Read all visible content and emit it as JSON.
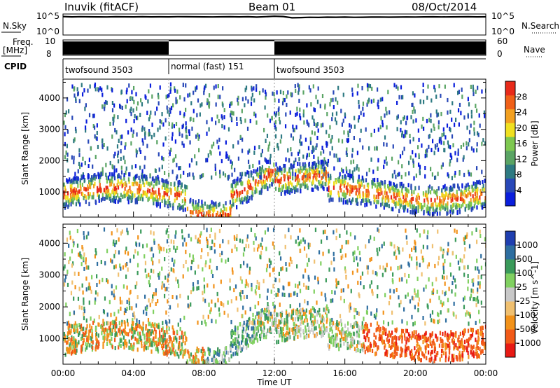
{
  "header": {
    "station": "Inuvik (fitACF)",
    "beam": "Beam 01",
    "date": "08/Oct/2014"
  },
  "colors": {
    "scatter_deep_blue": "#1f3fb0",
    "scatter_green": "#4a9a5a",
    "scatter_red": "#e82a1a",
    "scatter_orange": "#f2921a",
    "scatter_grey": "#c0c0c0"
  },
  "chart_data": [
    {
      "type": "line",
      "name": "noise-panel",
      "left_label": {
        "line1": "N.Sky",
        "top_tick": "10^5",
        "bottom_tick": "10^0"
      },
      "right_label": {
        "line1": "N.Search",
        "top_tick": "10^5",
        "bottom_tick": "10^0"
      },
      "scale": "log",
      "ylim": [
        1,
        100000
      ],
      "xlim_hours": [
        0,
        24
      ],
      "series": [
        {
          "x_hours": [
            0,
            0.5,
            1,
            1.5,
            2,
            2.5,
            3,
            3.5,
            4,
            4.5,
            5,
            5.5,
            6,
            6.5,
            7,
            7.5,
            8,
            8.5,
            9,
            9.5,
            10,
            10.5,
            11,
            11.5,
            12,
            12.5,
            13,
            13.5,
            14,
            14.5,
            15,
            15.5,
            16,
            16.5,
            17,
            17.5,
            18,
            18.5,
            19,
            19.5,
            20,
            20.5,
            21,
            21.5,
            22,
            22.5,
            23,
            23.5,
            24
          ],
          "y": [
            50000,
            40000,
            45000,
            42000,
            40000,
            38000,
            43000,
            41000,
            40000,
            44000,
            39000,
            42000,
            40000,
            45000,
            43000,
            41000,
            40000,
            38000,
            42000,
            44000,
            40000,
            43000,
            35000,
            45000,
            60000,
            50000,
            22000,
            25000,
            30000,
            28000,
            33000,
            31000,
            35000,
            30000,
            32000,
            34000,
            36000,
            33000,
            35000,
            38000,
            36000,
            40000,
            42000,
            38000,
            40000,
            42000,
            44000,
            40000,
            42000
          ]
        }
      ]
    },
    {
      "type": "area",
      "name": "frequency-panel",
      "left_label": {
        "line1": "Freq.",
        "line2": "[MHz]",
        "top_tick": "10",
        "bottom_tick": "8"
      },
      "right_label": {
        "line1": "Nave",
        "top_tick": "60",
        "bottom_tick": "0"
      },
      "ylim_left": [
        8,
        10
      ],
      "ylim_right": [
        0,
        60
      ],
      "segments": [
        {
          "start_hours": 0,
          "end_hours": 6,
          "level": 9.8
        },
        {
          "start_hours": 6,
          "end_hours": 12,
          "level": 10.0
        },
        {
          "start_hours": 12,
          "end_hours": 24,
          "level": 9.8
        }
      ]
    },
    {
      "type": "table",
      "name": "cpid-panel",
      "label": "CPID",
      "entries": [
        {
          "start_hours": 0,
          "end_hours": 6,
          "text": "twofsound 3503"
        },
        {
          "start_hours": 6,
          "end_hours": 12,
          "text": "normal (fast) 151"
        },
        {
          "start_hours": 12,
          "end_hours": 24,
          "text": "twofsound 3503"
        }
      ]
    },
    {
      "type": "heatmap",
      "name": "power-panel",
      "ylabel": "Slant Range [km]",
      "yticks": [
        "1000",
        "2000",
        "3000",
        "4000"
      ],
      "ylim": [
        200,
        4600
      ],
      "xlim_hours": [
        0,
        24
      ],
      "colorbar": {
        "label": "Power [dB]",
        "ticks": [
          "28",
          "24",
          "20",
          "16",
          "12",
          "8",
          "4"
        ],
        "range": [
          0,
          30
        ],
        "colors_low_to_high": [
          "#0a1edc",
          "#2848b8",
          "#2e7a82",
          "#5aa464",
          "#7ec850",
          "#f0e020",
          "#f2a020",
          "#f06018",
          "#e82a1a"
        ]
      }
    },
    {
      "type": "heatmap",
      "name": "velocity-panel",
      "ylabel": "Slant Range [km]",
      "yticks": [
        "1000",
        "2000",
        "3000",
        "4000"
      ],
      "ylim": [
        200,
        4600
      ],
      "xlim_hours": [
        0,
        24
      ],
      "xticks": [
        "00:00",
        "04:00",
        "08:00",
        "12:00",
        "16:00",
        "20:00",
        "00:00"
      ],
      "xlabel": "Time UT",
      "colorbar": {
        "label": "Velocity [m s^-1]",
        "ticks": [
          "1000",
          "500",
          "100",
          "25",
          "-25",
          "-100",
          "-500",
          "-1000"
        ],
        "colors_low_to_high": [
          "#e81a14",
          "#f25a18",
          "#f2921a",
          "#f0c070",
          "#c8c8c8",
          "#80d060",
          "#3a9a5a",
          "#2e6ea0",
          "#1f3fb0"
        ]
      }
    }
  ]
}
